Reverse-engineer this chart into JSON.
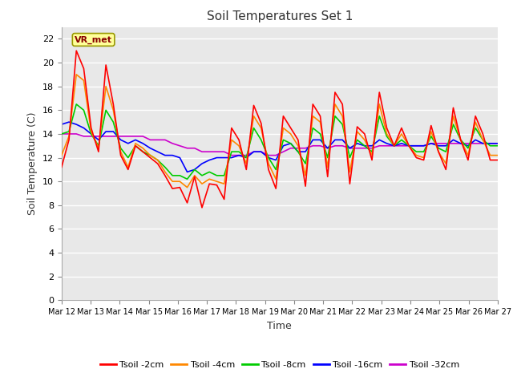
{
  "title": "Soil Temperatures Set 1",
  "xlabel": "Time",
  "ylabel": "Soil Temperature (C)",
  "ylim": [
    0,
    23
  ],
  "yticks": [
    0,
    2,
    4,
    6,
    8,
    10,
    12,
    14,
    16,
    18,
    20,
    22
  ],
  "x_labels": [
    "Mar 12",
    "Mar 13",
    "Mar 14",
    "Mar 15",
    "Mar 16",
    "Mar 17",
    "Mar 18",
    "Mar 19",
    "Mar 20",
    "Mar 21",
    "Mar 22",
    "Mar 23",
    "Mar 24",
    "Mar 25",
    "Mar 26",
    "Mar 27"
  ],
  "annotation_text": "VR_met",
  "bg_color": "#ffffff",
  "plot_bg_color": "#e8e8e8",
  "series_colors": [
    "#ff0000",
    "#ff8800",
    "#00cc00",
    "#0000ff",
    "#cc00cc"
  ],
  "series_labels": [
    "Tsoil -2cm",
    "Tsoil -4cm",
    "Tsoil -8cm",
    "Tsoil -16cm",
    "Tsoil -32cm"
  ],
  "t2cm": [
    11.2,
    13.5,
    21.0,
    19.5,
    14.5,
    12.5,
    19.8,
    16.5,
    12.2,
    11.0,
    13.0,
    12.5,
    12.0,
    11.5,
    10.5,
    9.4,
    9.5,
    8.2,
    10.4,
    7.8,
    9.8,
    9.7,
    8.5,
    14.5,
    13.5,
    11.0,
    16.4,
    14.9,
    11.0,
    9.4,
    15.5,
    14.5,
    13.5,
    9.6,
    16.5,
    15.5,
    10.4,
    17.5,
    16.5,
    9.8,
    14.6,
    14.0,
    11.8,
    17.5,
    14.5,
    13.0,
    14.5,
    13.0,
    12.0,
    11.8,
    14.7,
    12.5,
    11.0,
    16.2,
    13.5,
    11.8,
    15.5,
    14.0,
    11.8,
    11.8
  ],
  "t4cm": [
    12.2,
    13.8,
    19.0,
    18.5,
    14.2,
    12.8,
    18.0,
    16.0,
    12.5,
    11.2,
    13.2,
    12.8,
    12.2,
    11.8,
    10.8,
    10.0,
    10.0,
    9.5,
    10.5,
    9.8,
    10.2,
    10.0,
    9.8,
    13.5,
    13.0,
    11.5,
    15.5,
    14.5,
    11.5,
    10.2,
    14.5,
    14.0,
    13.0,
    10.5,
    15.5,
    15.0,
    11.2,
    16.5,
    15.5,
    10.8,
    14.2,
    13.5,
    12.2,
    16.5,
    14.0,
    13.0,
    14.0,
    13.0,
    12.2,
    12.0,
    14.2,
    12.5,
    11.5,
    15.5,
    13.5,
    12.2,
    15.0,
    13.5,
    12.2,
    12.2
  ],
  "t8cm": [
    14.0,
    14.2,
    16.5,
    16.0,
    14.0,
    13.0,
    16.0,
    15.0,
    12.8,
    12.0,
    13.0,
    12.5,
    12.2,
    11.8,
    11.2,
    10.5,
    10.5,
    10.2,
    11.0,
    10.5,
    10.8,
    10.5,
    10.5,
    12.5,
    12.5,
    12.0,
    14.5,
    13.5,
    12.0,
    11.0,
    13.5,
    13.2,
    12.5,
    11.5,
    14.5,
    14.0,
    12.0,
    15.5,
    14.8,
    12.0,
    13.5,
    13.0,
    12.5,
    15.5,
    13.8,
    13.0,
    13.5,
    13.0,
    12.5,
    12.5,
    13.8,
    12.8,
    12.5,
    14.8,
    13.5,
    12.8,
    14.5,
    13.5,
    13.0,
    13.0
  ],
  "t16cm": [
    14.8,
    15.0,
    14.8,
    14.5,
    14.0,
    13.5,
    14.2,
    14.2,
    13.5,
    13.2,
    13.5,
    13.2,
    12.8,
    12.5,
    12.2,
    12.2,
    12.0,
    10.8,
    11.0,
    11.5,
    11.8,
    12.0,
    12.0,
    12.0,
    12.2,
    12.0,
    12.5,
    12.5,
    12.0,
    11.8,
    13.0,
    13.2,
    12.5,
    12.5,
    13.5,
    13.5,
    12.8,
    13.5,
    13.5,
    12.8,
    13.2,
    13.0,
    13.0,
    13.5,
    13.2,
    13.0,
    13.2,
    13.0,
    13.0,
    13.0,
    13.2,
    13.0,
    13.0,
    13.5,
    13.2,
    13.0,
    13.5,
    13.2,
    13.2,
    13.2
  ],
  "t32cm": [
    14.0,
    14.0,
    14.0,
    13.8,
    13.8,
    13.8,
    13.8,
    13.8,
    13.8,
    13.8,
    13.8,
    13.8,
    13.5,
    13.5,
    13.5,
    13.2,
    13.0,
    12.8,
    12.8,
    12.5,
    12.5,
    12.5,
    12.5,
    12.2,
    12.2,
    12.2,
    12.5,
    12.5,
    12.2,
    12.2,
    12.5,
    12.8,
    12.8,
    12.8,
    13.0,
    13.0,
    12.8,
    13.0,
    13.0,
    12.8,
    12.8,
    12.8,
    12.8,
    13.0,
    13.0,
    13.0,
    13.0,
    13.0,
    13.0,
    13.0,
    13.2,
    13.2,
    13.2,
    13.2,
    13.2,
    13.2,
    13.2,
    13.2,
    13.2,
    13.2
  ]
}
